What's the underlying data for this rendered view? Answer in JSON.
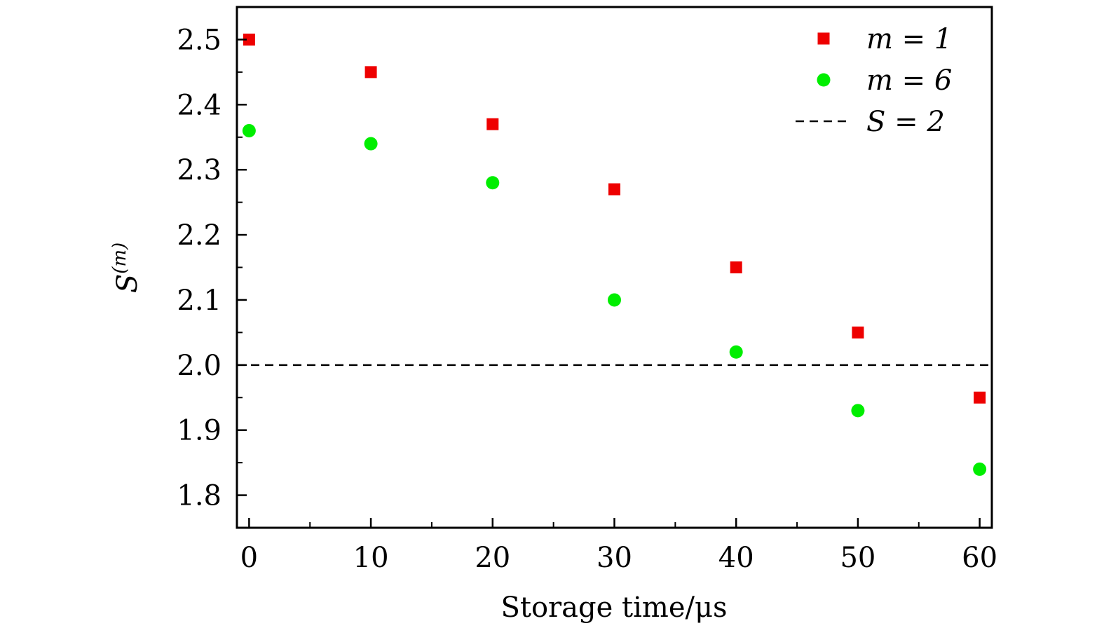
{
  "chart_data": {
    "type": "scatter",
    "xlabel": "Storage time/μs",
    "ylabel_base": "S",
    "ylabel_sup": "(m)",
    "xlim": [
      -1,
      61
    ],
    "ylim": [
      1.75,
      2.55
    ],
    "xticks": [
      0,
      10,
      20,
      30,
      40,
      50,
      60
    ],
    "xtick_labels": [
      "0",
      "10",
      "20",
      "30",
      "40",
      "50",
      "60"
    ],
    "yticks": [
      1.8,
      1.9,
      2.0,
      2.1,
      2.2,
      2.3,
      2.4,
      2.5
    ],
    "ytick_labels": [
      "1.8",
      "1.9",
      "2.0",
      "2.1",
      "2.2",
      "2.3",
      "2.4",
      "2.5"
    ],
    "series": [
      {
        "name": "m = 1",
        "marker": "square",
        "color": "#ee0000",
        "x": [
          0,
          10,
          20,
          30,
          40,
          50,
          60
        ],
        "y": [
          2.5,
          2.45,
          2.37,
          2.27,
          2.15,
          2.05,
          1.95
        ]
      },
      {
        "name": "m = 6",
        "marker": "circle",
        "color": "#00ee00",
        "x": [
          0,
          10,
          20,
          30,
          40,
          50,
          60
        ],
        "y": [
          2.36,
          2.34,
          2.28,
          2.1,
          2.02,
          1.93,
          1.84
        ]
      }
    ],
    "reference_line": {
      "name": "S = 2",
      "y": 2.0,
      "style": "dashed",
      "color": "#000000"
    },
    "legend_position": "top-right",
    "grid": false
  }
}
